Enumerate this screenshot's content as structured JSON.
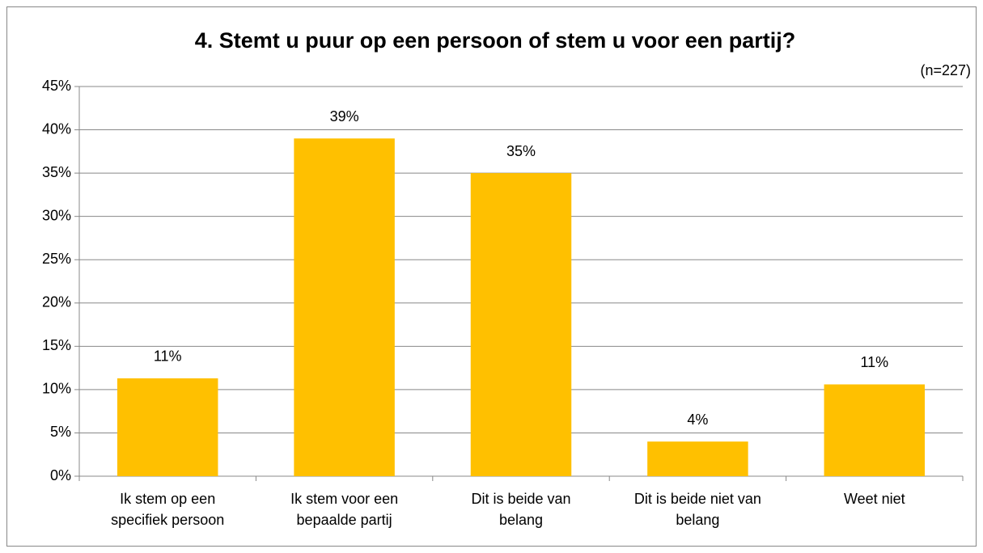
{
  "chart_data": {
    "type": "bar",
    "title": "4. Stemt u puur op een persoon of stem u voor een partij?",
    "subtitle": "(n=227)",
    "categories": [
      "Ik stem op een specifiek persoon",
      "Ik stem voor een bepaalde partij",
      "Dit is beide van belang",
      "Dit is beide niet van belang",
      "Weet niet"
    ],
    "values": [
      11.3,
      39,
      35,
      4,
      10.6
    ],
    "value_labels": [
      "11%",
      "39%",
      "35%",
      "4%",
      "11%"
    ],
    "color": "#ffc000",
    "ylim": [
      0,
      45
    ],
    "yticks": [
      {
        "value": 0,
        "label": "0%"
      },
      {
        "value": 5,
        "label": "5%"
      },
      {
        "value": 10,
        "label": "10%"
      },
      {
        "value": 15,
        "label": "15%"
      },
      {
        "value": 20,
        "label": "20%"
      },
      {
        "value": 25,
        "label": "25%"
      },
      {
        "value": 30,
        "label": "30%"
      },
      {
        "value": 35,
        "label": "35%"
      },
      {
        "value": 40,
        "label": "40%"
      },
      {
        "value": 45,
        "label": "45%"
      }
    ],
    "grid": true
  }
}
